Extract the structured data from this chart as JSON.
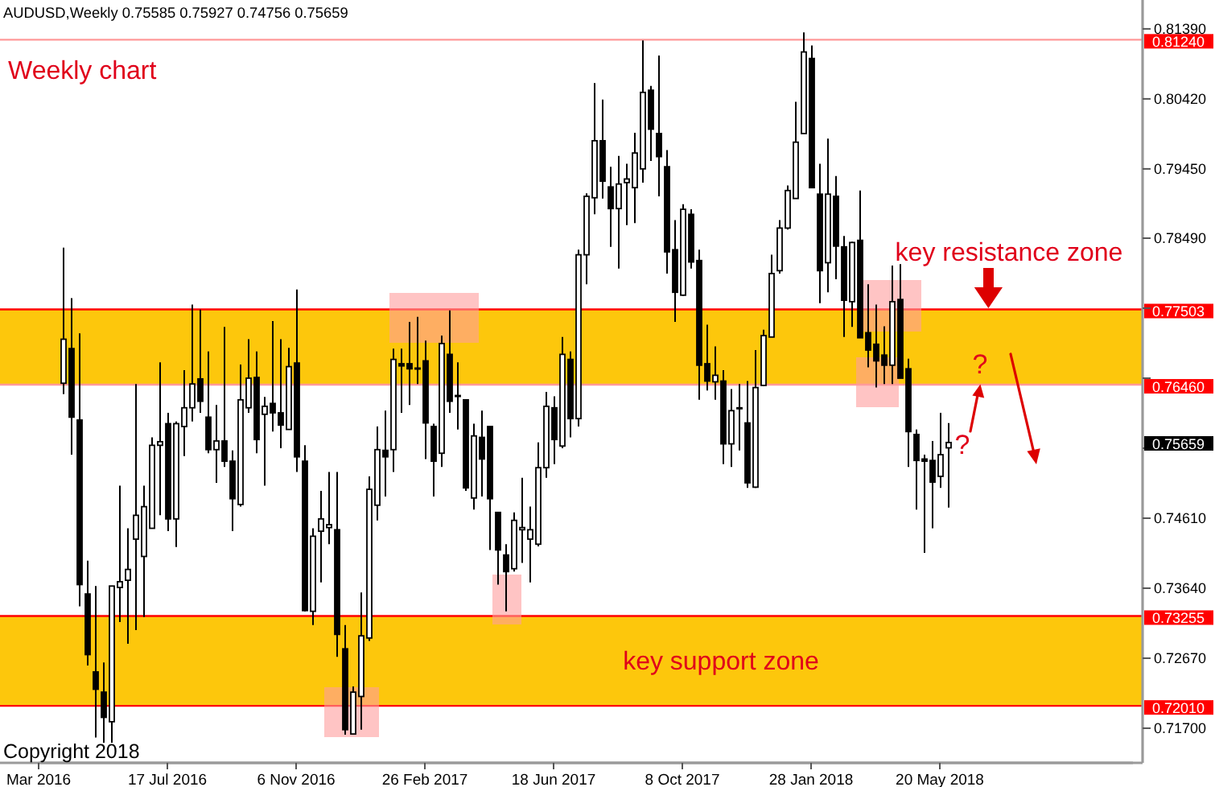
{
  "chart_data": {
    "type": "candlestick",
    "title": "AUDUSD,Weekly  0.75585 0.75927 0.74756 0.75659",
    "color": "#000000",
    "categories": [
      "Mar 2016",
      null,
      null,
      null,
      null,
      null,
      null,
      null,
      null,
      null,
      null,
      null,
      null,
      null,
      null,
      null,
      "17 Jul 2016",
      null,
      null,
      null,
      null,
      null,
      null,
      null,
      null,
      null,
      null,
      null,
      null,
      null,
      null,
      null,
      "6 Nov 2016",
      null,
      null,
      null,
      null,
      null,
      null,
      null,
      null,
      null,
      null,
      null,
      null,
      null,
      null,
      null,
      "26 Feb 2017",
      null,
      null,
      null,
      null,
      null,
      null,
      null,
      null,
      null,
      null,
      null,
      null,
      null,
      null,
      null,
      "18 Jun 2017",
      null,
      null,
      null,
      null,
      null,
      null,
      null,
      null,
      null,
      null,
      null,
      null,
      null,
      null,
      null,
      "8 Oct 2017",
      null,
      null,
      null,
      null,
      null,
      null,
      null,
      null,
      null,
      null,
      null,
      null,
      null,
      null,
      null,
      "28 Jan 2018",
      null,
      null,
      null,
      null,
      null,
      null,
      null,
      null,
      null,
      null,
      null,
      null,
      null,
      null,
      null,
      "20 May 2018",
      null,
      null,
      null,
      null,
      null,
      null,
      null,
      null,
      null,
      null,
      null,
      null,
      null,
      null,
      null,
      null,
      null,
      null,
      null,
      null,
      null,
      null,
      null,
      null
    ],
    "ohlc": [
      null,
      null,
      null,
      [
        0.7648,
        0.7836,
        0.7633,
        0.7709
      ],
      [
        0.7696,
        0.7766,
        0.7549,
        0.7601
      ],
      [
        0.7597,
        0.7717,
        0.7339,
        0.7369
      ],
      [
        0.7356,
        0.7402,
        0.7257,
        0.7272
      ],
      [
        0.7248,
        0.7367,
        0.7157,
        0.7224
      ],
      [
        0.722,
        0.7261,
        0.715,
        0.7185
      ],
      [
        0.7179,
        0.7367,
        0.715,
        0.7367
      ],
      [
        0.7365,
        0.7506,
        0.7317,
        0.7373
      ],
      [
        0.7375,
        0.7447,
        0.7287,
        0.739
      ],
      [
        0.7432,
        0.7647,
        0.7306,
        0.7465
      ],
      [
        0.7408,
        0.7506,
        0.7324,
        0.7477
      ],
      [
        0.7447,
        0.7573,
        0.7447,
        0.7562
      ],
      [
        0.7562,
        0.7677,
        0.7465,
        0.7567
      ],
      [
        0.7592,
        0.7607,
        0.7443,
        0.746
      ],
      [
        0.746,
        0.7595,
        0.7421,
        0.7592
      ],
      [
        0.7588,
        0.7666,
        0.7547,
        0.7614
      ],
      [
        0.7614,
        0.7757,
        0.7595,
        0.7647
      ],
      [
        0.7654,
        0.775,
        0.7607,
        0.7623
      ],
      [
        0.7601,
        0.7692,
        0.7551,
        0.7556
      ],
      [
        0.7556,
        0.7618,
        0.751,
        0.7568
      ],
      [
        0.7568,
        0.7726,
        0.7532,
        0.754
      ],
      [
        0.754,
        0.7555,
        0.7443,
        0.7488
      ],
      [
        0.748,
        0.7674,
        0.7477,
        0.7625
      ],
      [
        0.7614,
        0.7709,
        0.7607,
        0.7655
      ],
      [
        0.7656,
        0.7692,
        0.7551,
        0.757
      ],
      [
        0.7605,
        0.7629,
        0.7506,
        0.7616
      ],
      [
        0.762,
        0.7734,
        0.7581,
        0.7607
      ],
      [
        0.7607,
        0.7709,
        0.7558,
        0.759
      ],
      [
        0.7584,
        0.7697,
        0.7584,
        0.7671
      ],
      [
        0.7676,
        0.7778,
        0.7525,
        0.7546
      ],
      [
        0.754,
        0.7562,
        0.7332,
        0.7333
      ],
      [
        0.7332,
        0.7447,
        0.7313,
        0.7436
      ],
      [
        0.7443,
        0.7499,
        0.7372,
        0.746
      ],
      [
        0.7448,
        0.7525,
        0.7425,
        0.7452
      ],
      [
        0.7445,
        0.7525,
        0.7269,
        0.73
      ],
      [
        0.728,
        0.7313,
        0.7161,
        0.7168
      ],
      [
        0.7162,
        0.7228,
        0.7161,
        0.722
      ],
      [
        0.7214,
        0.7358,
        0.7168,
        0.7298
      ],
      [
        0.7295,
        0.7519,
        0.7291,
        0.7501
      ],
      [
        0.7479,
        0.7588,
        0.7458,
        0.7556
      ],
      [
        0.7555,
        0.761,
        0.7491,
        0.7546
      ],
      [
        0.7556,
        0.7696,
        0.7525,
        0.7681
      ],
      [
        0.7675,
        0.7696,
        0.7607,
        0.7672
      ],
      [
        0.7675,
        0.7733,
        0.7618,
        0.7668
      ],
      [
        0.7669,
        0.774,
        0.7647,
        0.7668
      ],
      [
        0.7679,
        0.7707,
        0.7543,
        0.7593
      ],
      [
        0.7588,
        0.7592,
        0.7491,
        0.754
      ],
      [
        0.7551,
        0.7714,
        0.7532,
        0.7703
      ],
      [
        0.7688,
        0.7749,
        0.7607,
        0.7623
      ],
      [
        0.7631,
        0.7677,
        0.7584,
        0.763
      ],
      [
        0.7625,
        0.7625,
        0.7499,
        0.7503
      ],
      [
        0.7489,
        0.7592,
        0.7473,
        0.7575
      ],
      [
        0.7573,
        0.761,
        0.7491,
        0.7543
      ],
      [
        0.7588,
        0.7588,
        0.7417,
        0.7488
      ],
      [
        0.7469,
        0.7469,
        0.7369,
        0.7417
      ],
      [
        0.741,
        0.7425,
        0.7332,
        0.7387
      ],
      [
        0.7391,
        0.7469,
        0.7387,
        0.7458
      ],
      [
        0.7445,
        0.7517,
        0.7399,
        0.7448
      ],
      [
        0.7432,
        0.7477,
        0.7372,
        0.7445
      ],
      [
        0.7425,
        0.7566,
        0.7422,
        0.7531
      ],
      [
        0.7531,
        0.7636,
        0.7517,
        0.7616
      ],
      [
        0.7614,
        0.763,
        0.7536,
        0.757
      ],
      [
        0.7561,
        0.7712,
        0.7558,
        0.7688
      ],
      [
        0.7681,
        0.7692,
        0.7573,
        0.7599
      ],
      [
        0.7599,
        0.7833,
        0.7588,
        0.7826
      ],
      [
        0.7826,
        0.7911,
        0.7785,
        0.7907
      ],
      [
        0.7905,
        0.8064,
        0.7882,
        0.7984
      ],
      [
        0.7984,
        0.8041,
        0.7904,
        0.7928
      ],
      [
        0.792,
        0.7948,
        0.7837,
        0.789
      ],
      [
        0.789,
        0.7963,
        0.7807,
        0.7924
      ],
      [
        0.7926,
        0.7952,
        0.7867,
        0.7931
      ],
      [
        0.7919,
        0.7995,
        0.787,
        0.7967
      ],
      [
        0.7945,
        0.8123,
        0.7926,
        0.8051
      ],
      [
        0.8054,
        0.806,
        0.7956,
        0.8
      ],
      [
        0.7994,
        0.8102,
        0.7907,
        0.7962
      ],
      [
        0.7948,
        0.7971,
        0.78,
        0.783
      ],
      [
        0.7833,
        0.7874,
        0.7733,
        0.7774
      ],
      [
        0.777,
        0.7896,
        0.7769,
        0.7889
      ],
      [
        0.7882,
        0.7889,
        0.7807,
        0.7816
      ],
      [
        0.7818,
        0.7833,
        0.7625,
        0.7673
      ],
      [
        0.7675,
        0.7729,
        0.7638,
        0.7651
      ],
      [
        0.765,
        0.7699,
        0.7625,
        0.7659
      ],
      [
        0.7651,
        0.7666,
        0.7536,
        0.7564
      ],
      [
        0.7564,
        0.764,
        0.7532,
        0.761
      ],
      [
        0.7613,
        0.7647,
        0.7555,
        0.7614
      ],
      [
        0.7593,
        0.7651,
        0.7503,
        0.751
      ],
      [
        0.7504,
        0.7694,
        0.7503,
        0.7642
      ],
      [
        0.7645,
        0.7722,
        0.7644,
        0.7714
      ],
      [
        0.7712,
        0.7826,
        0.7712,
        0.78
      ],
      [
        0.7804,
        0.7874,
        0.78,
        0.7863
      ],
      [
        0.7863,
        0.7922,
        0.7861,
        0.7915
      ],
      [
        0.7904,
        0.8038,
        0.7904,
        0.7982
      ],
      [
        0.7994,
        0.8134,
        0.7994,
        0.8107
      ],
      [
        0.8098,
        0.8116,
        0.7919,
        0.7919
      ],
      [
        0.791,
        0.7952,
        0.7759,
        0.7804
      ],
      [
        0.7815,
        0.7987,
        0.7774,
        0.791
      ],
      [
        0.7907,
        0.7935,
        0.7792,
        0.7838
      ],
      [
        0.7837,
        0.7852,
        0.7712,
        0.7763
      ],
      [
        0.7761,
        0.7844,
        0.7726,
        0.7843
      ],
      [
        0.7846,
        0.7915,
        0.7711,
        0.7711
      ],
      [
        0.7718,
        0.7785,
        0.767,
        0.7694
      ],
      [
        0.7702,
        0.7757,
        0.7642,
        0.7679
      ],
      [
        0.7687,
        0.7727,
        0.7647,
        0.7673
      ],
      [
        0.7673,
        0.7811,
        0.7647,
        0.7761
      ],
      [
        0.7764,
        0.7813,
        0.7655,
        0.7655
      ],
      [
        0.7668,
        0.7682,
        0.7532,
        0.7581
      ],
      [
        0.7577,
        0.7584,
        0.7473,
        0.7541
      ],
      [
        0.7543,
        0.7549,
        0.7413,
        0.754
      ],
      [
        0.7541,
        0.7568,
        0.7447,
        0.7511
      ],
      [
        0.7519,
        0.7607,
        0.7503,
        0.7549
      ],
      [
        0.75585,
        0.75927,
        0.74756,
        0.75659
      ],
      null,
      null,
      null,
      null,
      null,
      null,
      null,
      null,
      null,
      null,
      null,
      null,
      null,
      null,
      null,
      null,
      null,
      null,
      null,
      null,
      null,
      null,
      null
    ],
    "ylim": [
      0.7122,
      0.8179
    ],
    "yticks": [
      {
        "value": 0.8139,
        "label": "0.81390"
      },
      {
        "value": 0.8042,
        "label": "0.80420"
      },
      {
        "value": 0.7945,
        "label": "0.79450"
      },
      {
        "value": 0.7849,
        "label": "0.78490"
      },
      {
        "value": 0.7752,
        "label": null
      },
      {
        "value": 0.7655,
        "label": null
      },
      {
        "value": 0.7558,
        "label": null
      },
      {
        "value": 0.7461,
        "label": "0.74610"
      },
      {
        "value": 0.7364,
        "label": "0.73640"
      },
      {
        "value": 0.7267,
        "label": "0.72670"
      },
      {
        "value": 0.717,
        "label": "0.71700"
      }
    ],
    "bands": [
      {
        "axis": "y",
        "from": 0.7646,
        "to": 0.77503,
        "label": "key resistance zone",
        "color": "#fdc70c"
      },
      {
        "axis": "y",
        "from": 0.7201,
        "to": 0.73255,
        "label": "key support zone",
        "color": "#fdc70c"
      }
    ],
    "ref_lines": [
      {
        "axis": "y",
        "value": 0.8124,
        "label": "0.81240",
        "color": "#ff9999"
      },
      {
        "axis": "y",
        "value": 0.77503,
        "label": "0.77503",
        "color": "#ff0000"
      },
      {
        "axis": "y",
        "value": 0.7646,
        "label": "0.76460",
        "color": "#ff9999"
      },
      {
        "axis": "y",
        "value": 0.73255,
        "label": "0.73255",
        "color": "#ff0000"
      },
      {
        "axis": "y",
        "value": 0.7201,
        "label": "0.72010",
        "color": "#ff0000"
      }
    ],
    "annotations": [
      "Weekly chart",
      "?",
      "?",
      "Copyright 2018",
      "0.75659"
    ]
  }
}
